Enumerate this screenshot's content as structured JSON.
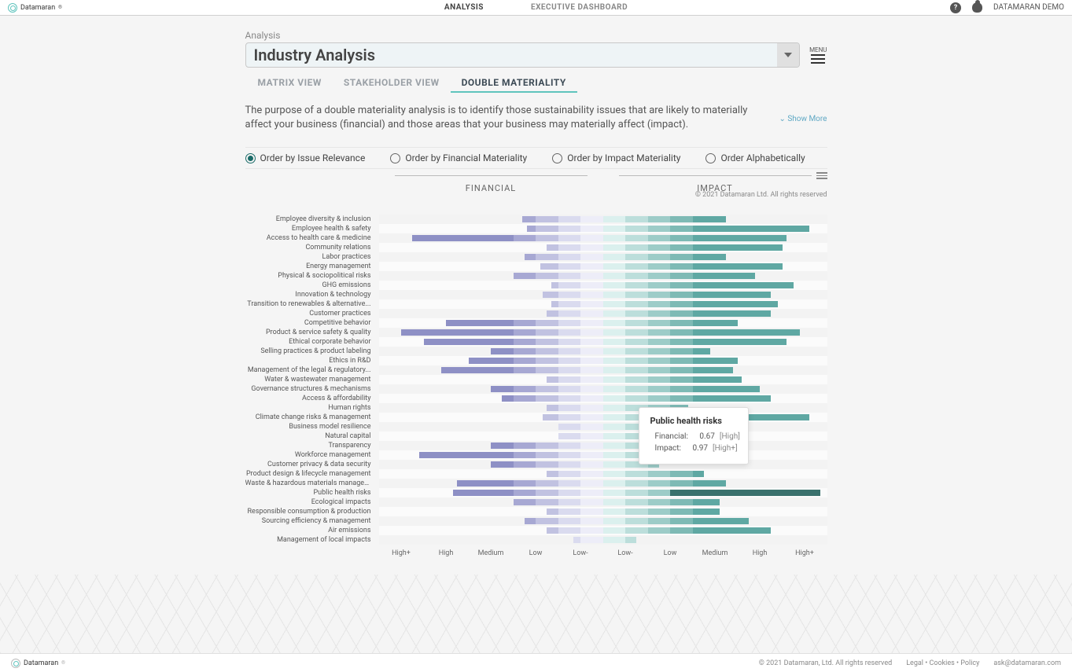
{
  "brand": "Datamaran",
  "nav": {
    "analysis": "ANALYSIS",
    "dashboard": "EXECUTIVE DASHBOARD"
  },
  "user_label": "DATAMARAN DEMO",
  "crumb": "Analysis",
  "select_value": "Industry Analysis",
  "menu_label": "MENU",
  "view_tabs": {
    "matrix": "MATRIX VIEW",
    "stakeholder": "STAKEHOLDER VIEW",
    "double": "DOUBLE MATERIALITY"
  },
  "description": "The purpose of a double materiality analysis is to identify those sustainability issues that are likely to materially affect your business (financial) and those areas that your business may materially affect (impact).",
  "show_more": "Show More",
  "radios": {
    "relevance": "Order by Issue Relevance",
    "fin": "Order by Financial Materiality",
    "imp": "Order by Impact Materiality",
    "alpha": "Order Alphabetically"
  },
  "axis": {
    "financial": "FINANCIAL",
    "impact": "IMPACT"
  },
  "copyright_chart": "© 2021 Datamaran Ltd. All rights reserved",
  "xticks": [
    "High+",
    "High",
    "Medium",
    "Low",
    "Low-",
    "Low-",
    "Low",
    "Medium",
    "High",
    "High+"
  ],
  "colors": {
    "fin": [
      "#8e90c5",
      "#a7a8d3",
      "#c1c2e1",
      "#dadbef",
      "#ededf8"
    ],
    "imp": [
      "#5fa8a3",
      "#7ebab5",
      "#9dccc8",
      "#bcdedb",
      "#dbf0ee"
    ],
    "highlight": "#3a716d"
  },
  "chart": {
    "issues": [
      {
        "label": "Employee diversity & inclusion",
        "fin": 0.36,
        "imp": 0.55
      },
      {
        "label": "Employee health & safety",
        "fin": 0.34,
        "imp": 0.92
      },
      {
        "label": "Access to health care & medicine",
        "fin": 0.85,
        "imp": 0.82
      },
      {
        "label": "Community relations",
        "fin": 0.25,
        "imp": 0.8
      },
      {
        "label": "Labor practices",
        "fin": 0.35,
        "imp": 0.55
      },
      {
        "label": "Energy management",
        "fin": 0.28,
        "imp": 0.8
      },
      {
        "label": "Physical & sociopolitical risks",
        "fin": 0.4,
        "imp": 0.68
      },
      {
        "label": "GHG emissions",
        "fin": 0.23,
        "imp": 0.85
      },
      {
        "label": "Innovation & technology",
        "fin": 0.27,
        "imp": 0.75
      },
      {
        "label": "Transition to renewables & alternative...",
        "fin": 0.23,
        "imp": 0.78
      },
      {
        "label": "Customer practices",
        "fin": 0.25,
        "imp": 0.75
      },
      {
        "label": "Competitive behavior",
        "fin": 0.7,
        "imp": 0.6
      },
      {
        "label": "Product & service safety & quality",
        "fin": 0.9,
        "imp": 0.88
      },
      {
        "label": "Ethical corporate behavior",
        "fin": 0.8,
        "imp": 0.82
      },
      {
        "label": "Selling practices & product labeling",
        "fin": 0.5,
        "imp": 0.48
      },
      {
        "label": "Ethics in R&D",
        "fin": 0.6,
        "imp": 0.6
      },
      {
        "label": "Management of the legal & regulatory...",
        "fin": 0.72,
        "imp": 0.58
      },
      {
        "label": "Water & wastewater management",
        "fin": 0.25,
        "imp": 0.62
      },
      {
        "label": "Governance structures & mechanisms",
        "fin": 0.5,
        "imp": 0.7
      },
      {
        "label": "Access & affordability",
        "fin": 0.45,
        "imp": 0.75
      },
      {
        "label": "Human rights",
        "fin": 0.25,
        "imp": 0.38
      },
      {
        "label": "Climate change risks & management",
        "fin": 0.27,
        "imp": 0.92
      },
      {
        "label": "Business model resilience",
        "fin": 0.2,
        "imp": 0.32
      },
      {
        "label": "Natural capital",
        "fin": 0.2,
        "imp": 0.32
      },
      {
        "label": "Transparency",
        "fin": 0.5,
        "imp": 0.3
      },
      {
        "label": "Workforce management",
        "fin": 0.82,
        "imp": 0.25
      },
      {
        "label": "Customer privacy & data security",
        "fin": 0.5,
        "imp": 0.25
      },
      {
        "label": "Product design & lifecycle management",
        "fin": 0.25,
        "imp": 0.45
      },
      {
        "label": "Waste & hazardous materials managem...",
        "fin": 0.65,
        "imp": 0.55
      },
      {
        "label": "Public health risks",
        "fin": 0.67,
        "imp": 0.97,
        "highlight": true
      },
      {
        "label": "Ecological impacts",
        "fin": 0.4,
        "imp": 0.52
      },
      {
        "label": "Responsible consumption & production",
        "fin": 0.25,
        "imp": 0.52
      },
      {
        "label": "Sourcing efficiency & management",
        "fin": 0.35,
        "imp": 0.65
      },
      {
        "label": "Air emissions",
        "fin": 0.25,
        "imp": 0.75
      },
      {
        "label": "Management of local impacts",
        "fin": 0.13,
        "imp": 0.15
      }
    ]
  },
  "tooltip": {
    "title": "Public health risks",
    "fin_label": "Financial:",
    "fin_val": "0.67",
    "fin_tag": "[High]",
    "imp_label": "Impact:",
    "imp_val": "0.97",
    "imp_tag": "[High+]",
    "fin_sw": "#a7a8d3",
    "imp_sw": "#9dccc8"
  },
  "footer": {
    "copy": "© 2021 Datamaran, Ltd. All rights reserved",
    "links": "Legal • Cookies • Policy",
    "email": "ask@datamaran.com"
  }
}
